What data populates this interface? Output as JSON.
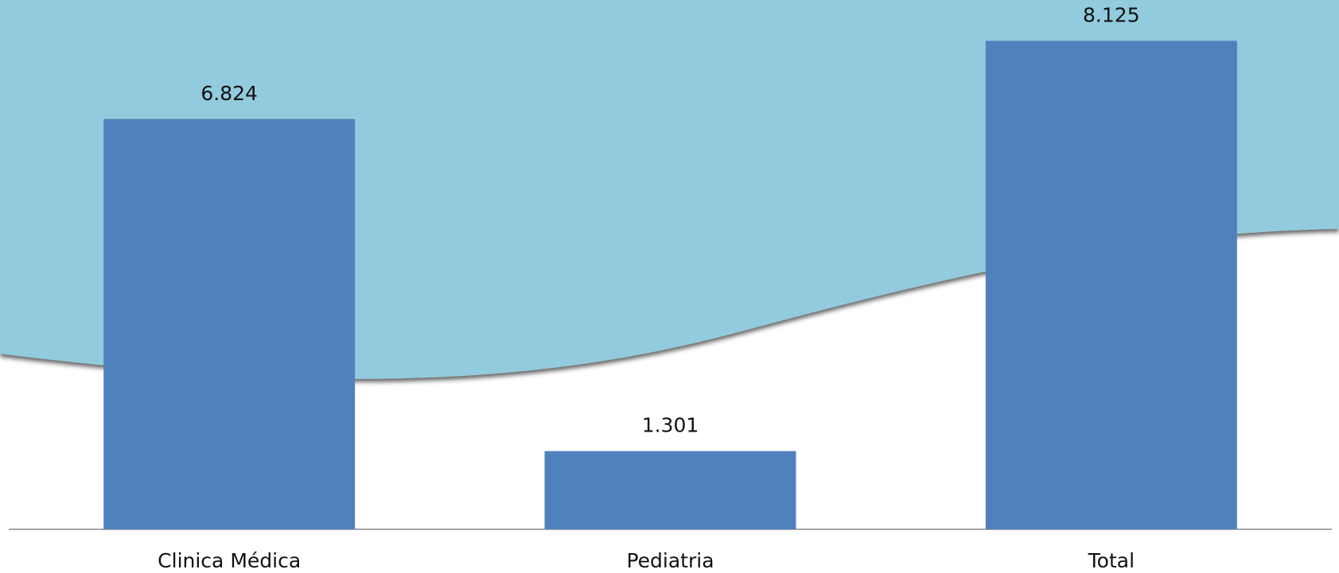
{
  "chart_data": {
    "type": "bar",
    "categories": [
      "Clinica Médica",
      "Pediatria",
      "Total"
    ],
    "values": [
      6824,
      1301,
      8125
    ],
    "value_labels": [
      "6.824",
      "1.301",
      "8.125"
    ],
    "color": "#4f81bd",
    "ylim": [
      0,
      8500
    ]
  }
}
